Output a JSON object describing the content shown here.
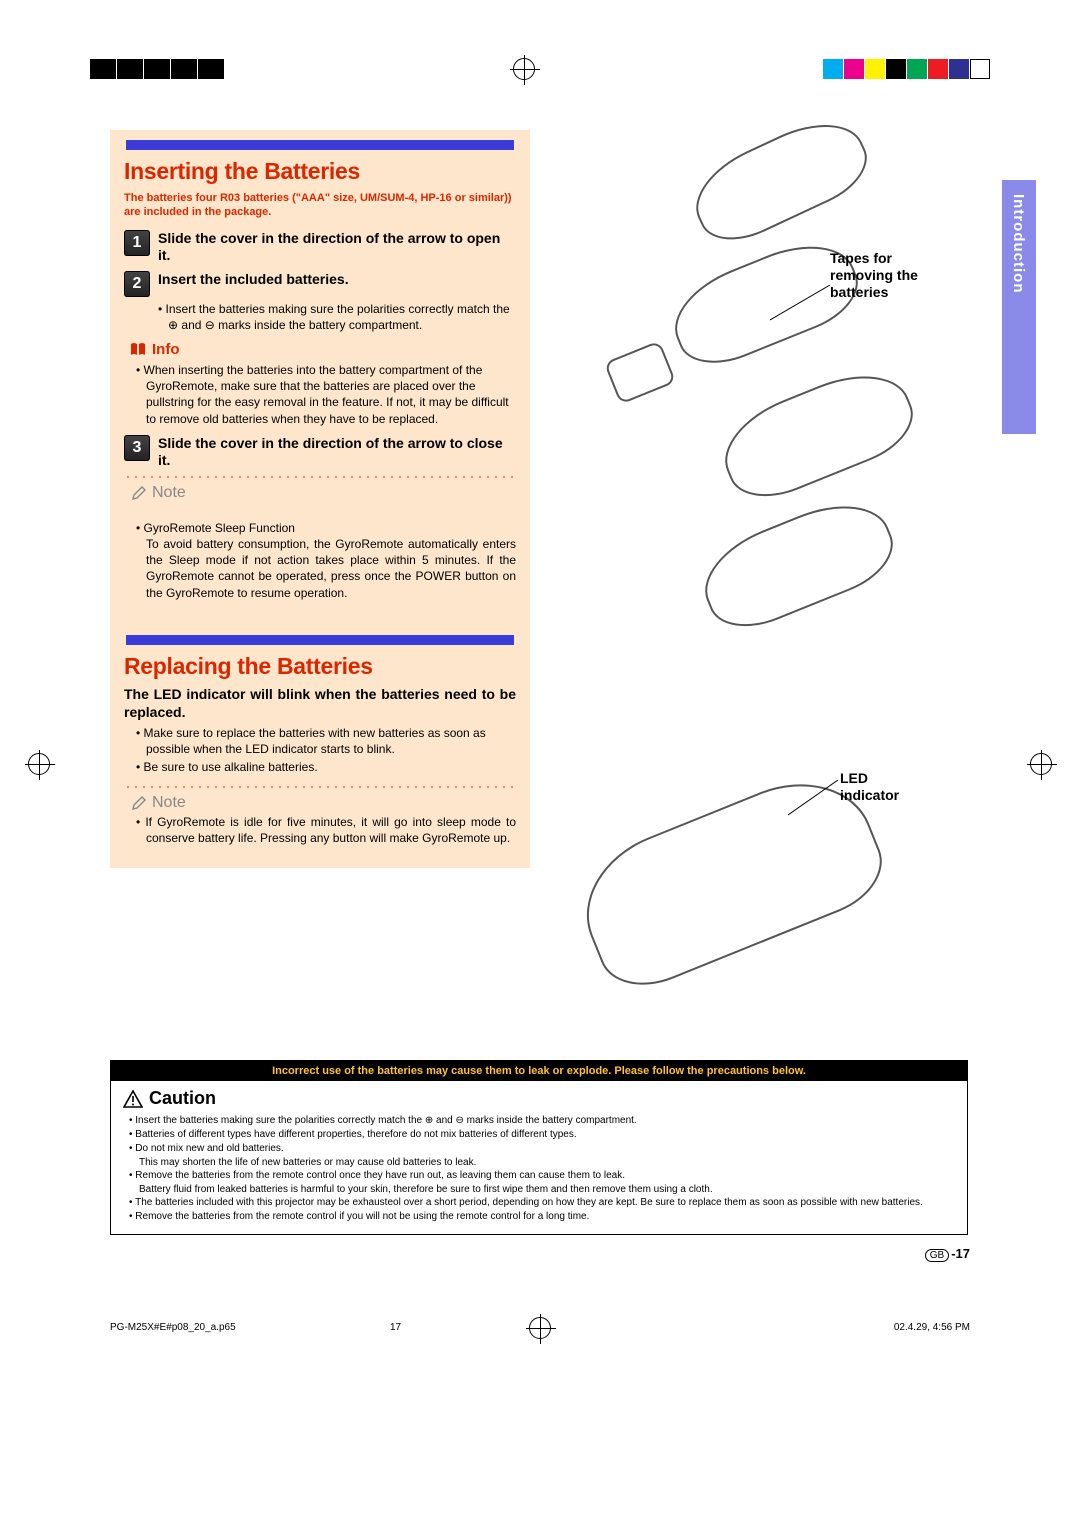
{
  "print_marks": {
    "left_bar_colors": [
      "#000000",
      "#000000",
      "#000000",
      "#000000",
      "#000000"
    ],
    "right_bar_colors": [
      "#00aeef",
      "#ec008c",
      "#fff200",
      "#000000",
      "#00a651",
      "#ed1c24",
      "#2e3192",
      "#ffffff"
    ]
  },
  "side_tab": "Introduction",
  "section1": {
    "title": "Inserting the Batteries",
    "subtitle": "The batteries four R03 batteries (\"AAA\" size, UM/SUM-4, HP-16 or similar)) are included in the package.",
    "step1": "Slide the cover in the direction of the arrow to open it.",
    "step2_title": "Insert the included batteries.",
    "step2_bullet": "Insert the batteries making sure the polarities correctly match the ⊕ and ⊖ marks inside the battery compartment.",
    "info_label": "Info",
    "info_bullet": "When inserting the batteries into the battery compartment of the GyroRemote, make sure that the batteries are placed over the pullstring for the easy removal in the feature. If not, it may be difficult to remove old batteries when they have to be replaced.",
    "step3": "Slide the cover in the direction of the arrow to close it.",
    "note_label": "Note",
    "note_bullet": "GyroRemote Sleep Function\nTo avoid battery consumption, the GyroRemote automatically enters the Sleep mode if not action takes place within 5 minutes. If the GyroRemote cannot be operated, press once the POWER button on the GyroRemote to resume operation."
  },
  "section2": {
    "title": "Replacing the Batteries",
    "subtitle": "The LED indicator will blink when the batteries need to be replaced.",
    "b1": "Make sure to replace the batteries with new batteries as soon as possible when the LED indicator starts to blink.",
    "b2": "Be sure to use alkaline batteries.",
    "note_label": "Note",
    "note_bullet": "If GyroRemote is idle for five minutes, it will go into sleep mode to conserve battery life. Pressing any button will make GyroRemote up."
  },
  "illus": {
    "tapes_label": "Tapes for removing the batteries",
    "led_label": "LED indicator"
  },
  "caution": {
    "banner": "Incorrect use of the batteries may cause them to leak or explode. Please follow the precautions below.",
    "title": "Caution",
    "items": [
      "Insert the batteries making sure the polarities correctly match the ⊕ and ⊖ marks inside the battery compartment.",
      "Batteries of different types have different properties, therefore do not mix batteries of different types.",
      "Do not mix new and old batteries.",
      "Remove the batteries from the remote control once they have run out, as leaving them can cause them to leak.",
      "The batteries included with this projector may be exhausteol over a short period, depending on how they are kept. Be sure to replace them as soon as possible with new batteries.",
      "Remove the batteries from the remote control if you will not be using the remote control for a long time."
    ],
    "sub3": "This may shorten the life of new batteries or may cause old batteries to leak.",
    "sub4": "Battery fluid from leaked batteries is harmful to your skin, therefore be sure to first wipe them and then remove them using a cloth."
  },
  "page_number": "-17",
  "page_prefix": "GB",
  "footer": {
    "file": "PG-M25X#E#p08_20_a.p65",
    "num": "17",
    "date": "02.4.29, 4:56 PM"
  }
}
